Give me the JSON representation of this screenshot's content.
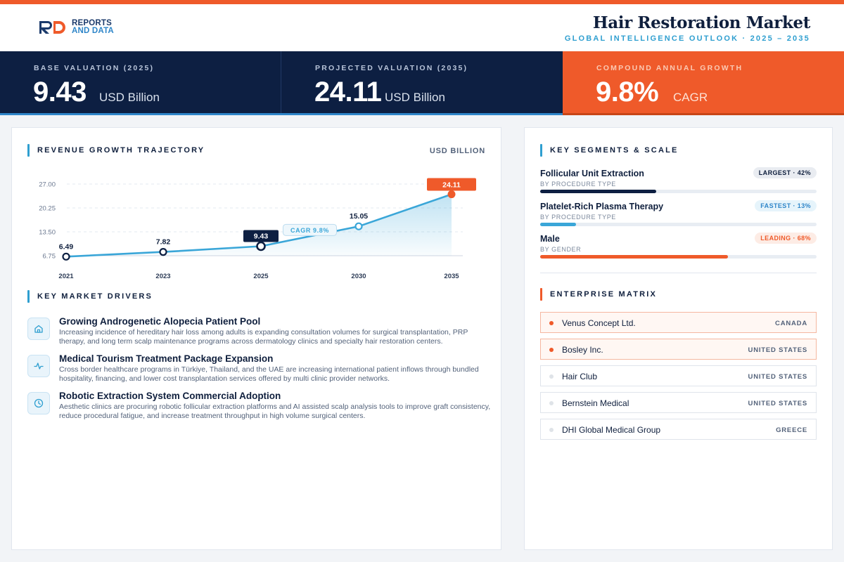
{
  "header": {
    "logo_line1": "REPORTS",
    "logo_line2": "AND DATA",
    "title": "Hair Restoration Market",
    "subtitle": "GLOBAL INTELLIGENCE OUTLOOK  ·  2025 – 2035"
  },
  "kpis": [
    {
      "label": "BASE VALUATION (2025)",
      "value": "9.43",
      "unit": "USD Billion"
    },
    {
      "label": "PROJECTED VALUATION (2035)",
      "value": "24.11",
      "unit": "USD Billion"
    },
    {
      "label": "COMPOUND ANNUAL GROWTH",
      "value": "9.8%",
      "unit": "CAGR"
    }
  ],
  "revenue_section": {
    "title": "REVENUE GROWTH TRAJECTORY",
    "unit": "USD BILLION"
  },
  "chart_data": {
    "type": "area",
    "title": "REVENUE GROWTH TRAJECTORY",
    "ylabel": "USD BILLION",
    "categories": [
      "2021",
      "2023",
      "2025",
      "2030",
      "2035"
    ],
    "values": [
      6.49,
      7.82,
      9.43,
      15.05,
      24.11
    ],
    "value_labels": [
      "6.49",
      "7.82",
      "9.43",
      "15.05",
      "24.11"
    ],
    "y_ticks": [
      "27.00",
      "20.25",
      "13.50",
      "6.75"
    ],
    "ylim": [
      6.75,
      27.0
    ],
    "annotation": "CAGR 9.8%",
    "grid": true,
    "colors": {
      "line": "#3aa6d8",
      "base_marker": "#0d1f42",
      "end_marker": "#ef5a2a"
    }
  },
  "drivers_section": {
    "title": "KEY MARKET DRIVERS",
    "items": [
      {
        "icon": "home-icon",
        "title": "Growing Androgenetic Alopecia Patient Pool",
        "desc": "Increasing incidence of hereditary hair loss among adults is expanding consultation volumes for surgical transplantation, PRP therapy, and long term scalp maintenance programs across dermatology clinics and specialty hair restoration centers."
      },
      {
        "icon": "activity-icon",
        "title": "Medical Tourism Treatment Package Expansion",
        "desc": "Cross border healthcare programs in Türkiye, Thailand, and the UAE are increasing international patient inflows through bundled hospitality, financing, and lower cost transplantation services offered by multi clinic provider networks."
      },
      {
        "icon": "clock-icon",
        "title": "Robotic Extraction System Commercial Adoption",
        "desc": "Aesthetic clinics are procuring robotic follicular extraction platforms and AI assisted scalp analysis tools to improve graft consistency, reduce procedural fatigue, and increase treatment throughput in high volume surgical centers."
      }
    ]
  },
  "segments_section": {
    "title": "KEY SEGMENTS & SCALE",
    "items": [
      {
        "name": "Follicular Unit Extraction",
        "sub": "BY PROCEDURE TYPE",
        "badge": "LARGEST · 42%",
        "share": 42,
        "color": "#0d1f42",
        "badge_bg": "#e9ecf1",
        "badge_fg": "#0f1f3d"
      },
      {
        "name": "Platelet-Rich Plasma Therapy",
        "sub": "BY PROCEDURE TYPE",
        "badge": "FASTEST · 13%",
        "share": 13,
        "color": "#3aa6d8",
        "badge_bg": "#e6f4fb",
        "badge_fg": "#2f86c9"
      },
      {
        "name": "Male",
        "sub": "BY GENDER",
        "badge": "LEADING · 68%",
        "share": 68,
        "color": "#ef5a2a",
        "badge_bg": "#fdece5",
        "badge_fg": "#ef5a2a"
      }
    ]
  },
  "enterprise_section": {
    "title": "ENTERPRISE MATRIX",
    "items": [
      {
        "name": "Venus Concept Ltd.",
        "country": "CANADA"
      },
      {
        "name": "Bosley Inc.",
        "country": "UNITED STATES"
      },
      {
        "name": "Hair Club",
        "country": "UNITED STATES"
      },
      {
        "name": "Bernstein Medical",
        "country": "UNITED STATES"
      },
      {
        "name": "DHI Global Medical Group",
        "country": "GREECE"
      }
    ]
  }
}
